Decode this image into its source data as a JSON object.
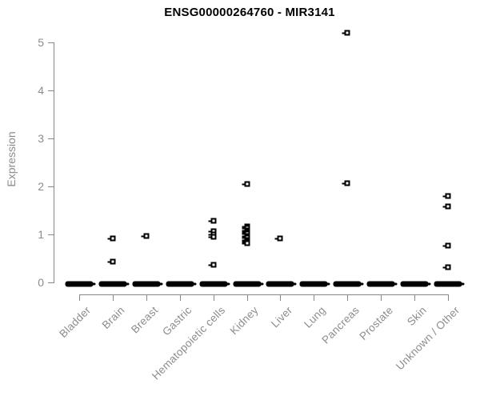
{
  "figure": {
    "title": "ENSG00000264760 - MIR3141",
    "y_axis_title": "Expression",
    "colors": {
      "background": "#ffffff",
      "title": "#000000",
      "axis": "#878787",
      "tick_text": "#8c8c8c",
      "points": "#000000"
    }
  },
  "chart_data": {
    "type": "scatter",
    "subtype": "strip-plot",
    "title": "ENSG00000264760 - MIR3141",
    "xlabel": "",
    "ylabel": "Expression",
    "ylim": [
      0,
      5.4
    ],
    "yticks": [
      0,
      1,
      2,
      3,
      4,
      5
    ],
    "grid": false,
    "legend_position": "none",
    "categories": [
      "Bladder",
      "Brain",
      "Breast",
      "Gastric",
      "Hematopoietic cells",
      "Kidney",
      "Liver",
      "Lung",
      "Pancreas",
      "Prostate",
      "Skin",
      "Unknown / Other"
    ],
    "series": [
      {
        "category": "Bladder",
        "zero_cluster": true,
        "nonzero_values": []
      },
      {
        "category": "Brain",
        "zero_cluster": true,
        "nonzero_values": [
          0.92,
          0.43
        ]
      },
      {
        "category": "Breast",
        "zero_cluster": true,
        "nonzero_values": [
          0.97
        ]
      },
      {
        "category": "Gastric",
        "zero_cluster": true,
        "nonzero_values": []
      },
      {
        "category": "Hematopoietic cells",
        "zero_cluster": true,
        "nonzero_values": [
          1.28,
          1.07,
          1.0,
          0.95,
          0.36
        ]
      },
      {
        "category": "Kidney",
        "zero_cluster": true,
        "nonzero_values": [
          2.05,
          1.17,
          1.13,
          1.09,
          1.05,
          1.01,
          0.97,
          0.93,
          0.89,
          0.85,
          0.81
        ]
      },
      {
        "category": "Liver",
        "zero_cluster": true,
        "nonzero_values": [
          0.92
        ]
      },
      {
        "category": "Lung",
        "zero_cluster": true,
        "nonzero_values": []
      },
      {
        "category": "Pancreas",
        "zero_cluster": true,
        "nonzero_values": [
          5.2,
          2.07
        ]
      },
      {
        "category": "Prostate",
        "zero_cluster": true,
        "nonzero_values": []
      },
      {
        "category": "Skin",
        "zero_cluster": true,
        "nonzero_values": []
      },
      {
        "category": "Unknown / Other",
        "zero_cluster": true,
        "nonzero_values": [
          1.8,
          1.58,
          0.77,
          0.32
        ]
      }
    ]
  }
}
